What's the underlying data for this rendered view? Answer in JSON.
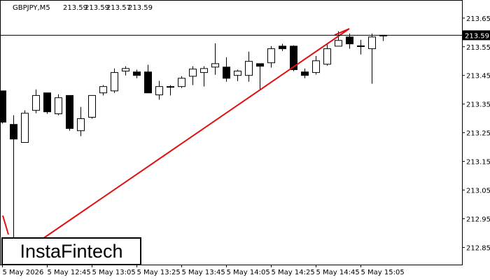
{
  "chart_data": {
    "type": "candlestick",
    "title": "GBPJPY,M5",
    "categories": [
      "5 May 2026",
      null,
      null,
      null,
      "5 May 12:45",
      null,
      null,
      null,
      "5 May 13:05",
      null,
      null,
      null,
      "5 May 13:25",
      null,
      null,
      null,
      "5 May 13:45",
      null,
      null,
      null,
      "5 May 14:05",
      null,
      null,
      null,
      "5 May 14:25",
      null,
      null,
      null,
      "5 May 14:45",
      null,
      null,
      null,
      "5 May 15:05",
      null,
      null
    ],
    "open": [
      213.396,
      213.279,
      213.216,
      213.328,
      213.389,
      213.316,
      213.38,
      213.257,
      213.304,
      213.389,
      213.396,
      213.465,
      213.462,
      213.462,
      213.382,
      213.409,
      213.411,
      213.447,
      213.46,
      213.479,
      213.479,
      213.45,
      213.45,
      213.491,
      213.494,
      213.552,
      213.552,
      213.462,
      213.46,
      213.489,
      213.552,
      213.584,
      213.553,
      213.543,
      213.59
    ],
    "high": [
      213.396,
      213.311,
      213.328,
      213.401,
      213.389,
      213.384,
      213.38,
      213.34,
      213.38,
      213.416,
      213.474,
      213.482,
      213.47,
      213.487,
      213.431,
      213.416,
      213.447,
      213.482,
      213.482,
      213.562,
      213.513,
      213.47,
      213.533,
      213.491,
      213.552,
      213.56,
      213.555,
      213.474,
      213.518,
      213.562,
      213.604,
      213.596,
      213.574,
      213.596,
      213.59
    ],
    "low": [
      213.282,
      212.8,
      213.216,
      213.318,
      213.316,
      213.311,
      213.257,
      213.238,
      213.299,
      213.38,
      213.389,
      213.45,
      213.44,
      213.389,
      213.365,
      213.38,
      213.406,
      213.416,
      213.411,
      213.452,
      213.428,
      213.43,
      213.428,
      213.401,
      213.477,
      213.535,
      213.465,
      213.44,
      213.453,
      213.484,
      213.552,
      213.543,
      213.523,
      213.421,
      213.57
    ],
    "close": [
      213.287,
      213.228,
      213.318,
      213.38,
      213.323,
      213.372,
      213.265,
      213.299,
      213.38,
      213.411,
      213.46,
      213.474,
      213.45,
      213.389,
      213.411,
      213.411,
      213.44,
      213.472,
      213.474,
      213.491,
      213.44,
      213.465,
      213.499,
      213.482,
      213.543,
      213.543,
      213.47,
      213.45,
      213.501,
      213.543,
      213.572,
      213.56,
      213.552,
      213.584,
      213.59
    ],
    "up_color": "#ffffff",
    "down_color": "#000000",
    "ylim": [
      212.79,
      213.713
    ],
    "yticks": [
      212.85,
      212.95,
      213.05,
      213.15,
      213.25,
      213.35,
      213.45,
      213.55,
      213.65
    ],
    "price_line": 213.59,
    "watermark": "InstaFintech"
  }
}
